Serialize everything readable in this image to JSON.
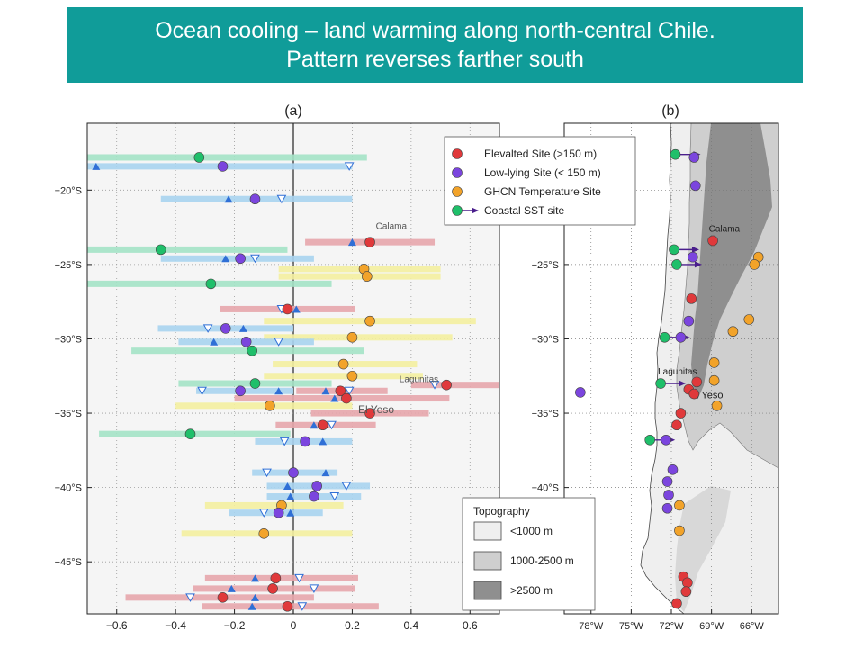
{
  "title": {
    "line1": "Ocean cooling – land warming along north-central Chile.",
    "line2": "Pattern reverses farther south"
  },
  "panels": {
    "a": "(a)",
    "b": "(b)"
  },
  "legend": {
    "entries": [
      {
        "label": "Elevalted Site (>150 m)",
        "marker": "circle",
        "color": "#e0393b"
      },
      {
        "label": "Low-lying Site (< 150 m)",
        "marker": "circle",
        "color": "#7b45de"
      },
      {
        "label": "GHCN Temperature Site",
        "marker": "circle",
        "color": "#f2a32a"
      },
      {
        "label": "Coastal SST site",
        "marker": "circle-arrow",
        "color": "#1fbf6a"
      }
    ]
  },
  "topography_legend": {
    "title": "Topography",
    "items": [
      {
        "label": "<1000 m",
        "color": "#efefef"
      },
      {
        "label": "1000-2500 m",
        "color": "#cfcfcf"
      },
      {
        "label": ">2500 m",
        "color": "#8f8f8f"
      }
    ]
  },
  "colors": {
    "elevated": "#e0393b",
    "elevated_bar": "#e7a6ac",
    "lowlying": "#7b45de",
    "lowlying_bar": "#a9d4f0",
    "ghcn": "#f2a32a",
    "ghcn_bar": "#f4f0a0",
    "sst": "#1fbf6a",
    "sst_bar": "#a4e3c7",
    "triangle": "#2f6fd6"
  },
  "chart_data": [
    {
      "panel": "a",
      "type": "scatter",
      "xlabel": "",
      "ylabel": "",
      "xlim": [
        -0.7,
        0.7
      ],
      "ylim": [
        -48.5,
        -15.5
      ],
      "x_ticks": [
        -0.6,
        -0.4,
        -0.2,
        0,
        0.2,
        0.4,
        0.6
      ],
      "x_tick_labels": [
        "−0.6",
        "−0.4",
        "−0.2",
        "0",
        "0.2",
        "0.4",
        "0.6"
      ],
      "y_ticks": [
        -20,
        -25,
        -30,
        -35,
        -40,
        -45
      ],
      "y_tick_labels": [
        "−20°S",
        "−25°S",
        "−30°S",
        "−35°S",
        "−40°S",
        "−45°S"
      ],
      "grid": true,
      "annotations": [
        {
          "text": "Calama",
          "x": 0.28,
          "y": -22.6
        },
        {
          "text": "Lagunitas",
          "x": 0.36,
          "y": -32.9
        },
        {
          "text": "El Yeso",
          "x": 0.22,
          "y": -35.0
        }
      ],
      "rows": [
        {
          "cat": "sst",
          "lat": -17.8,
          "value": -0.32,
          "range": [
            -0.7,
            0.25
          ]
        },
        {
          "cat": "lowlying",
          "lat": -18.4,
          "value": -0.24,
          "range": [
            -0.7,
            0.2
          ],
          "tri_up": -0.67,
          "tri_down": 0.19
        },
        {
          "cat": "lowlying",
          "lat": -20.6,
          "value": -0.13,
          "range": [
            -0.45,
            0.2
          ],
          "tri_up": -0.22,
          "tri_down": -0.04
        },
        {
          "cat": "elevated",
          "lat": -23.5,
          "value": 0.26,
          "range": [
            0.04,
            0.48
          ],
          "tri_up": 0.2
        },
        {
          "cat": "sst",
          "lat": -24.0,
          "value": -0.45,
          "range": [
            -0.7,
            -0.02
          ]
        },
        {
          "cat": "lowlying",
          "lat": -24.6,
          "value": -0.18,
          "range": [
            -0.45,
            0.07
          ],
          "tri_up": -0.23,
          "tri_down": -0.13
        },
        {
          "cat": "ghcn",
          "lat": -25.3,
          "value": 0.24,
          "range": [
            -0.05,
            0.5
          ]
        },
        {
          "cat": "ghcn",
          "lat": -25.8,
          "value": 0.25,
          "range": [
            -0.05,
            0.5
          ]
        },
        {
          "cat": "sst",
          "lat": -26.3,
          "value": -0.28,
          "range": [
            -0.7,
            0.13
          ]
        },
        {
          "cat": "elevated",
          "lat": -28.0,
          "value": -0.02,
          "range": [
            -0.25,
            0.21
          ],
          "tri_up": 0.01,
          "tri_down": -0.04
        },
        {
          "cat": "ghcn",
          "lat": -28.8,
          "value": 0.26,
          "range": [
            -0.1,
            0.62
          ]
        },
        {
          "cat": "lowlying",
          "lat": -29.3,
          "value": -0.23,
          "range": [
            -0.46,
            0.0
          ],
          "tri_up": -0.17,
          "tri_down": -0.29
        },
        {
          "cat": "ghcn",
          "lat": -29.9,
          "value": 0.2,
          "range": [
            -0.1,
            0.54
          ]
        },
        {
          "cat": "lowlying",
          "lat": -30.2,
          "value": -0.16,
          "range": [
            -0.39,
            0.07
          ],
          "tri_up": -0.27,
          "tri_down": -0.05
        },
        {
          "cat": "sst",
          "lat": -30.8,
          "value": -0.14,
          "range": [
            -0.55,
            0.24
          ]
        },
        {
          "cat": "ghcn",
          "lat": -31.7,
          "value": 0.17,
          "range": [
            -0.07,
            0.42
          ]
        },
        {
          "cat": "ghcn",
          "lat": -32.5,
          "value": 0.2,
          "range": [
            -0.1,
            0.44
          ]
        },
        {
          "cat": "sst",
          "lat": -33.0,
          "value": -0.13,
          "range": [
            -0.39,
            0.13
          ]
        },
        {
          "cat": "elevated",
          "lat": -33.1,
          "value": 0.52,
          "range": [
            0.4,
            0.7
          ],
          "tri_down": 0.48
        },
        {
          "cat": "lowlying",
          "lat": -33.5,
          "value": -0.18,
          "range": [
            -0.33,
            0.0
          ],
          "tri_up": -0.05,
          "tri_down": -0.31
        },
        {
          "cat": "elevated",
          "lat": -33.5,
          "value": 0.16,
          "range": [
            0.01,
            0.32
          ],
          "tri_up": 0.11,
          "tri_down": 0.19
        },
        {
          "cat": "elevated",
          "lat": -34.0,
          "value": 0.18,
          "range": [
            -0.2,
            0.53
          ],
          "tri_up": 0.14
        },
        {
          "cat": "ghcn",
          "lat": -34.5,
          "value": -0.08,
          "range": [
            -0.4,
            0.2
          ]
        },
        {
          "cat": "elevated",
          "lat": -35.0,
          "value": 0.26,
          "range": [
            0.06,
            0.46
          ]
        },
        {
          "cat": "elevated",
          "lat": -35.8,
          "value": 0.1,
          "range": [
            -0.06,
            0.28
          ],
          "tri_up": 0.07,
          "tri_down": 0.13
        },
        {
          "cat": "sst",
          "lat": -36.4,
          "value": -0.35,
          "range": [
            -0.66,
            -0.01
          ]
        },
        {
          "cat": "lowlying",
          "lat": -36.9,
          "value": 0.04,
          "range": [
            -0.13,
            0.2
          ],
          "tri_up": 0.1,
          "tri_down": -0.03
        },
        {
          "cat": "lowlying",
          "lat": -39.0,
          "value": 0.0,
          "range": [
            -0.14,
            0.15
          ],
          "tri_up": 0.11,
          "tri_down": -0.09
        },
        {
          "cat": "lowlying",
          "lat": -39.9,
          "value": 0.08,
          "range": [
            -0.09,
            0.26
          ],
          "tri_up": -0.02,
          "tri_down": 0.18
        },
        {
          "cat": "lowlying",
          "lat": -40.6,
          "value": 0.07,
          "range": [
            -0.09,
            0.23
          ],
          "tri_up": -0.01,
          "tri_down": 0.14
        },
        {
          "cat": "ghcn",
          "lat": -41.2,
          "value": -0.04,
          "range": [
            -0.3,
            0.17
          ]
        },
        {
          "cat": "lowlying",
          "lat": -41.7,
          "value": -0.05,
          "range": [
            -0.22,
            0.1
          ],
          "tri_up": -0.01,
          "tri_down": -0.1
        },
        {
          "cat": "ghcn",
          "lat": -43.1,
          "value": -0.1,
          "range": [
            -0.38,
            0.2
          ]
        },
        {
          "cat": "elevated",
          "lat": -46.1,
          "value": -0.06,
          "range": [
            -0.3,
            0.22
          ],
          "tri_up": -0.13,
          "tri_down": 0.02
        },
        {
          "cat": "elevated",
          "lat": -46.8,
          "value": -0.07,
          "range": [
            -0.34,
            0.21
          ],
          "tri_up": -0.21,
          "tri_down": 0.07
        },
        {
          "cat": "elevated",
          "lat": -47.4,
          "value": -0.24,
          "range": [
            -0.57,
            0.07
          ],
          "tri_up": -0.13,
          "tri_down": -0.35
        },
        {
          "cat": "elevated",
          "lat": -48.0,
          "value": -0.02,
          "range": [
            -0.31,
            0.29
          ],
          "tri_up": -0.14,
          "tri_down": 0.03
        }
      ]
    },
    {
      "panel": "b",
      "type": "scatter",
      "xlim": [
        -80,
        -64
      ],
      "ylim": [
        -48.5,
        -15.5
      ],
      "x_ticks": [
        -78,
        -75,
        -72,
        -69,
        -66
      ],
      "x_tick_labels": [
        "78°W",
        "75°W",
        "72°W",
        "69°W",
        "66°W"
      ],
      "y_ticks": [
        -20,
        -25,
        -30,
        -35,
        -40
      ],
      "y_tick_labels": [
        "−20°S",
        "−25°S",
        "−30°S",
        "−35°S",
        "−40°S"
      ],
      "grid": true,
      "annotations": [
        {
          "text": "Calama",
          "x": -69.2,
          "y": -22.8
        },
        {
          "text": "Lagunitas",
          "x": -73.0,
          "y": -32.4
        },
        {
          "text": "El Yeso",
          "x": -70.6,
          "y": -34.0
        }
      ],
      "points": [
        {
          "cat": "sst",
          "lon": -71.7,
          "lat": -17.6
        },
        {
          "cat": "lowlying",
          "lon": -70.3,
          "lat": -17.8
        },
        {
          "cat": "lowlying",
          "lon": -70.2,
          "lat": -19.7
        },
        {
          "cat": "elevated",
          "lon": -68.9,
          "lat": -23.4
        },
        {
          "cat": "sst",
          "lon": -71.8,
          "lat": -24.0
        },
        {
          "cat": "lowlying",
          "lon": -70.4,
          "lat": -24.5
        },
        {
          "cat": "sst",
          "lon": -71.6,
          "lat": -25.0
        },
        {
          "cat": "ghcn",
          "lon": -65.5,
          "lat": -24.5
        },
        {
          "cat": "ghcn",
          "lon": -65.8,
          "lat": -25.0
        },
        {
          "cat": "elevated",
          "lon": -70.5,
          "lat": -27.3
        },
        {
          "cat": "ghcn",
          "lon": -66.2,
          "lat": -28.7
        },
        {
          "cat": "lowlying",
          "lon": -70.7,
          "lat": -28.8
        },
        {
          "cat": "ghcn",
          "lon": -67.4,
          "lat": -29.5
        },
        {
          "cat": "sst",
          "lon": -72.5,
          "lat": -29.9
        },
        {
          "cat": "lowlying",
          "lon": -71.3,
          "lat": -29.9
        },
        {
          "cat": "ghcn",
          "lon": -68.8,
          "lat": -31.6
        },
        {
          "cat": "sst",
          "lon": -72.8,
          "lat": -33.0
        },
        {
          "cat": "ghcn",
          "lon": -68.8,
          "lat": -32.8
        },
        {
          "cat": "elevated",
          "lon": -70.1,
          "lat": -32.9
        },
        {
          "cat": "elevated",
          "lon": -70.7,
          "lat": -33.4
        },
        {
          "cat": "elevated",
          "lon": -70.3,
          "lat": -33.7
        },
        {
          "cat": "lowlying",
          "lon": -78.8,
          "lat": -33.6
        },
        {
          "cat": "ghcn",
          "lon": -68.6,
          "lat": -34.5
        },
        {
          "cat": "elevated",
          "lon": -71.3,
          "lat": -35.0
        },
        {
          "cat": "elevated",
          "lon": -71.6,
          "lat": -35.8
        },
        {
          "cat": "sst",
          "lon": -73.6,
          "lat": -36.8
        },
        {
          "cat": "lowlying",
          "lon": -72.4,
          "lat": -36.8
        },
        {
          "cat": "lowlying",
          "lon": -71.9,
          "lat": -38.8
        },
        {
          "cat": "lowlying",
          "lon": -72.3,
          "lat": -39.6
        },
        {
          "cat": "lowlying",
          "lon": -72.2,
          "lat": -40.5
        },
        {
          "cat": "ghcn",
          "lon": -71.4,
          "lat": -41.2
        },
        {
          "cat": "lowlying",
          "lon": -72.3,
          "lat": -41.4
        },
        {
          "cat": "ghcn",
          "lon": -71.4,
          "lat": -42.9
        },
        {
          "cat": "elevated",
          "lon": -71.1,
          "lat": -46.0
        },
        {
          "cat": "elevated",
          "lon": -70.8,
          "lat": -46.4
        },
        {
          "cat": "elevated",
          "lon": -70.9,
          "lat": -47.0
        },
        {
          "cat": "elevated",
          "lon": -71.6,
          "lat": -47.8
        }
      ]
    }
  ]
}
